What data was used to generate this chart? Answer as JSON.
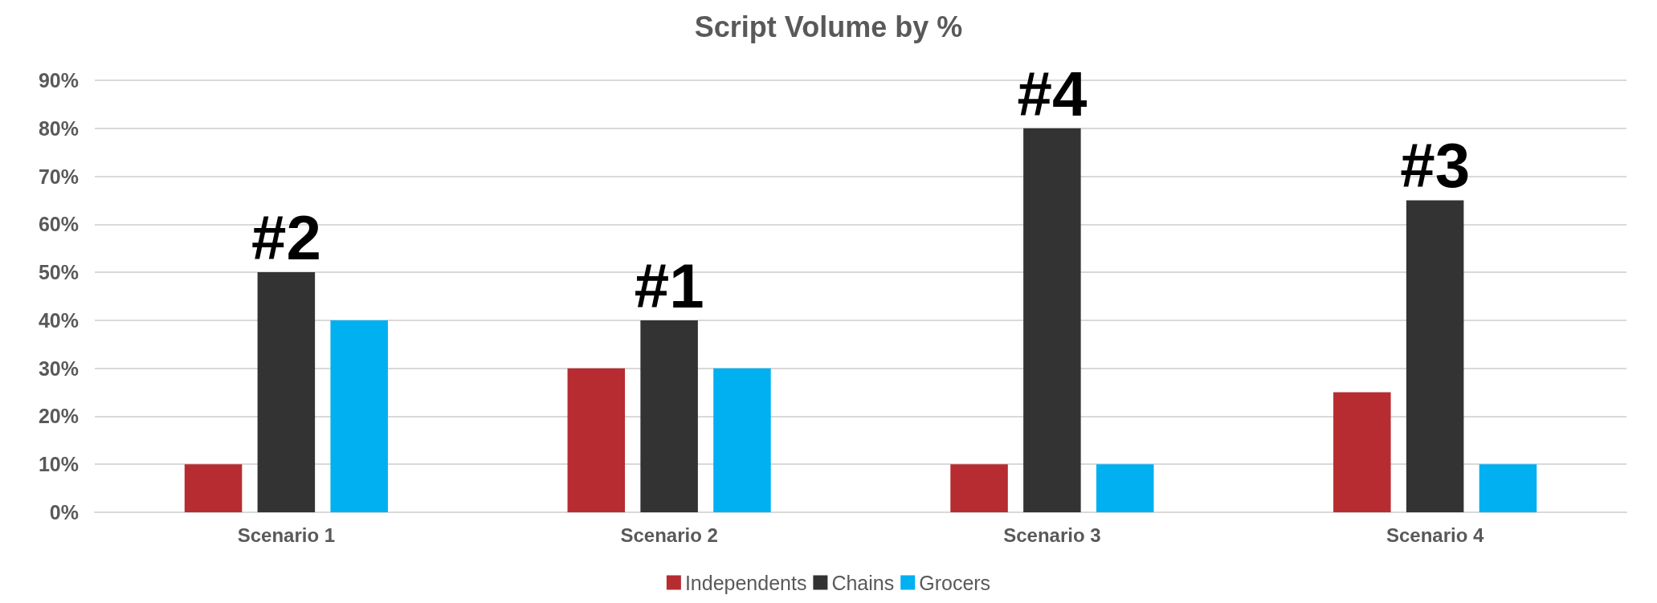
{
  "chart_data": {
    "type": "bar",
    "title": "Script Volume by %",
    "categories": [
      "Scenario 1",
      "Scenario 2",
      "Scenario 3",
      "Scenario 4"
    ],
    "series": [
      {
        "name": "Independents",
        "color": "#b72c30",
        "values": [
          10,
          30,
          10,
          25
        ]
      },
      {
        "name": "Chains",
        "color": "#333333",
        "values": [
          50,
          40,
          80,
          65
        ]
      },
      {
        "name": "Grocers",
        "color": "#00b0f0",
        "values": [
          40,
          30,
          10,
          10
        ]
      }
    ],
    "ylim": [
      0,
      90
    ],
    "yticks": [
      {
        "value": 0,
        "label": "0%"
      },
      {
        "value": 10,
        "label": "10%"
      },
      {
        "value": 20,
        "label": "20%"
      },
      {
        "value": 30,
        "label": "30%"
      },
      {
        "value": 40,
        "label": "40%"
      },
      {
        "value": 50,
        "label": "50%"
      },
      {
        "value": 60,
        "label": "60%"
      },
      {
        "value": 70,
        "label": "70%"
      },
      {
        "value": 80,
        "label": "80%"
      },
      {
        "value": 90,
        "label": "90%"
      }
    ],
    "grid": "y",
    "legend": "bottom",
    "annotations": [
      {
        "text": "#2",
        "x": "Scenario 1",
        "y": 50
      },
      {
        "text": "#1",
        "x": "Scenario 2",
        "y": 40
      },
      {
        "text": "#4",
        "x": "Scenario 3",
        "y": 80
      },
      {
        "text": "#3",
        "x": "Scenario 4",
        "y": 65
      }
    ]
  }
}
